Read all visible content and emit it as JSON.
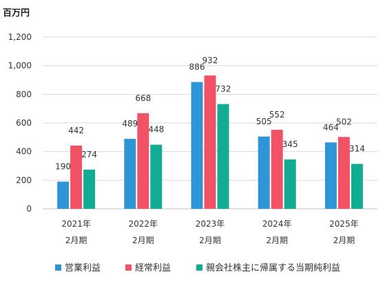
{
  "chart_data": {
    "type": "bar",
    "unit_label": "百万円",
    "categories": [
      [
        "2021年",
        "2月期"
      ],
      [
        "2022年",
        "2月期"
      ],
      [
        "2023年",
        "2月期"
      ],
      [
        "2024年",
        "2月期"
      ],
      [
        "2025年",
        "2月期"
      ]
    ],
    "series": [
      {
        "name": "営業利益",
        "color": "#2e95d6",
        "values": [
          190,
          489,
          886,
          505,
          464
        ]
      },
      {
        "name": "経常利益",
        "color": "#f15266",
        "values": [
          442,
          668,
          932,
          552,
          502
        ]
      },
      {
        "name": "親会社株主に帰属する当期純利益",
        "color": "#12ab93",
        "values": [
          274,
          448,
          732,
          345,
          314
        ]
      }
    ],
    "ylim": [
      0,
      1200
    ],
    "yticks": [
      0,
      200,
      400,
      600,
      800,
      1000,
      1200
    ],
    "ytick_labels": [
      "0",
      "200",
      "400",
      "600",
      "800",
      "1,000",
      "1,200"
    ],
    "grid": true,
    "legend_position": "bottom"
  }
}
